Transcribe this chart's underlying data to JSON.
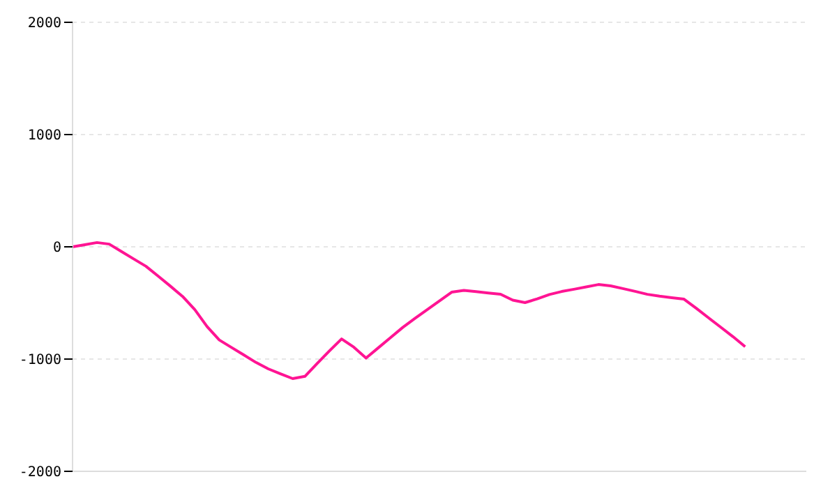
{
  "chart_data": {
    "type": "line",
    "categories": [
      null,
      null,
      null,
      null,
      null,
      null,
      null,
      null,
      null,
      null,
      null,
      null,
      null,
      null,
      null,
      null,
      null,
      null,
      null,
      null,
      null,
      null,
      null,
      null,
      null,
      null,
      null,
      null,
      null,
      null,
      null,
      null,
      null,
      null,
      null,
      null,
      null,
      null,
      null,
      null,
      null,
      null,
      null,
      null,
      null,
      null,
      null,
      null,
      null,
      null,
      null,
      null,
      null,
      null,
      null,
      null,
      null,
      null,
      null,
      null,
      null
    ],
    "series": [
      {
        "color": "#ff1493",
        "values": [
          0,
          19,
          38,
          24,
          -42,
          -108,
          -173,
          -261,
          -350,
          -442,
          -560,
          -710,
          -830,
          -897,
          -963,
          -1030,
          -1087,
          -1131,
          -1174,
          -1154,
          -1039,
          -928,
          -821,
          -894,
          -991,
          -900,
          -809,
          -718,
          -638,
          -560,
          -482,
          -404,
          -388,
          -399,
          -411,
          -422,
          -475,
          -497,
          -464,
          -425,
          -398,
          -378,
          -357,
          -336,
          -348,
          -372,
          -397,
          -423,
          -440,
          -453,
          -466,
          -547,
          -632,
          -716,
          -800,
          -890,
          null,
          null,
          null,
          null,
          null
        ]
      }
    ],
    "ylim": [
      -2000,
      2000
    ],
    "yticks": [
      -2000,
      -1000,
      0,
      1000,
      2000
    ],
    "grid": "y",
    "tick_labels": "y",
    "marker": "none",
    "line_style": "solid",
    "legend": false
  }
}
